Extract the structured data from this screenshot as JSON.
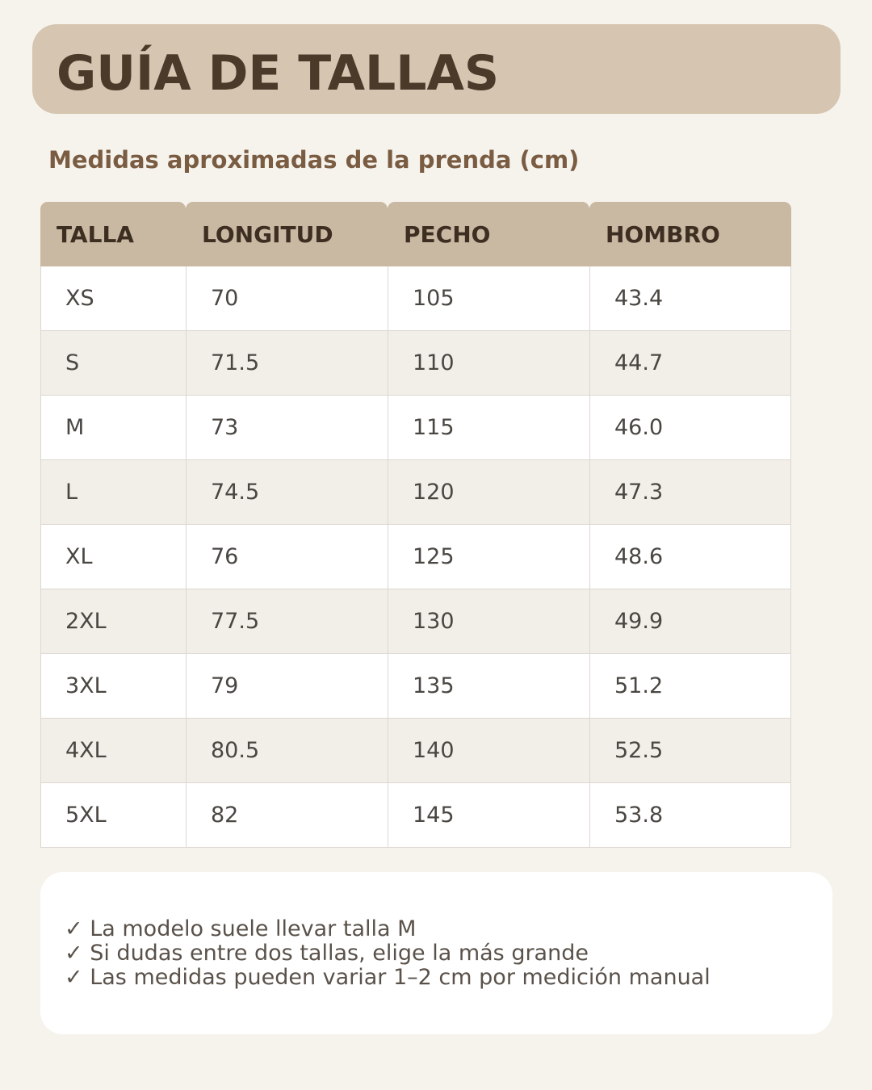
{
  "title": "GUÍA DE TALLAS",
  "subtitle": "Medidas aproximadas de la prenda (cm)",
  "table": {
    "headers": [
      "TALLA",
      "LONGITUD",
      "PECHO",
      "HOMBRO"
    ],
    "rows": [
      [
        "XS",
        "70",
        "105",
        "43.4"
      ],
      [
        "S",
        "71.5",
        "110",
        "44.7"
      ],
      [
        "M",
        "73",
        "115",
        "46.0"
      ],
      [
        "L",
        "74.5",
        "120",
        "47.3"
      ],
      [
        "XL",
        "76",
        "125",
        "48.6"
      ],
      [
        "2XL",
        "77.5",
        "130",
        "49.9"
      ],
      [
        "3XL",
        "79",
        "135",
        "51.2"
      ],
      [
        "4XL",
        "80.5",
        "140",
        "52.5"
      ],
      [
        "5XL",
        "82",
        "145",
        "53.8"
      ]
    ]
  },
  "notes": [
    "✓ La modelo suele llevar talla M",
    "✓ Si dudas entre dos tallas, elige la más grande",
    "✓ Las medidas pueden variar 1–2 cm por medición manual"
  ],
  "colors": {
    "background": "#f6f3ed",
    "title_banner": "#d6c5b0",
    "title_text": "#4b3a2a",
    "subtitle_text": "#7a5c42",
    "header_bg": "#c9b8a2",
    "row_alt_bg": "#f2efe9"
  }
}
